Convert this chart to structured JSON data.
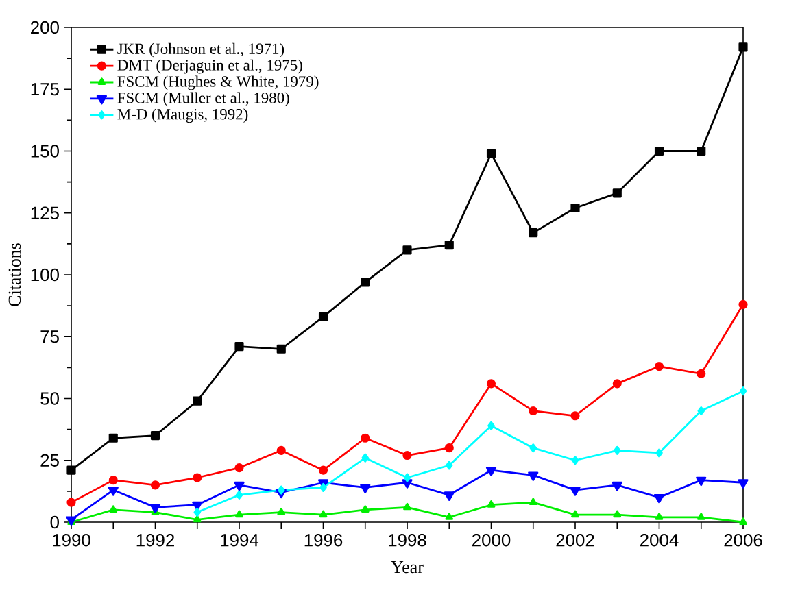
{
  "chart_data": {
    "type": "line",
    "xlabel": "Year",
    "ylabel": "Citations",
    "x": [
      1990,
      1991,
      1992,
      1993,
      1994,
      1995,
      1996,
      1997,
      1998,
      1999,
      2000,
      2001,
      2002,
      2003,
      2004,
      2005,
      2006
    ],
    "series": [
      {
        "name": "JKR (Johnson et al., 1971)",
        "color": "#000000",
        "marker": "square",
        "values": [
          21,
          34,
          35,
          49,
          71,
          70,
          83,
          97,
          110,
          112,
          149,
          117,
          127,
          133,
          150,
          150,
          192
        ]
      },
      {
        "name": "DMT (Derjaguin et al., 1975)",
        "color": "#ff0000",
        "marker": "circle",
        "values": [
          8,
          17,
          15,
          18,
          22,
          29,
          21,
          34,
          27,
          30,
          56,
          45,
          43,
          56,
          63,
          60,
          88
        ]
      },
      {
        "name": "FSCM (Hughes & White, 1979)",
        "color": "#00ee00",
        "marker": "triangle",
        "values": [
          0,
          5,
          4,
          1,
          3,
          4,
          3,
          5,
          6,
          2,
          7,
          8,
          3,
          3,
          2,
          2,
          0
        ]
      },
      {
        "name": "FSCM (Muller et al., 1980)",
        "color": "#0000ff",
        "marker": "triangle-down",
        "values": [
          1,
          13,
          6,
          7,
          15,
          12,
          16,
          14,
          16,
          11,
          21,
          19,
          13,
          15,
          10,
          17,
          16
        ]
      },
      {
        "name": "M-D (Maugis, 1992)",
        "color": "#00ffff",
        "marker": "diamond",
        "values": [
          null,
          null,
          null,
          4,
          11,
          13,
          14,
          26,
          18,
          23,
          39,
          30,
          25,
          29,
          28,
          45,
          53
        ]
      }
    ],
    "xlim": [
      1990,
      2006
    ],
    "xticks": [
      1990,
      {
        "value": 1991,
        "label": null
      },
      1992,
      {
        "value": 1993,
        "label": null
      },
      1994,
      {
        "value": 1995,
        "label": null
      },
      1996,
      {
        "value": 1997,
        "label": null
      },
      1998,
      {
        "value": 1999,
        "label": null
      },
      2000,
      {
        "value": 2001,
        "label": null
      },
      2002,
      {
        "value": 2003,
        "label": null
      },
      2004,
      {
        "value": 2005,
        "label": null
      },
      2006
    ],
    "ylim": [
      0,
      200
    ],
    "yticks": [
      0,
      25,
      50,
      75,
      100,
      125,
      150,
      175,
      200
    ],
    "grid": false,
    "legend": "top left",
    "line_style": "solid"
  }
}
